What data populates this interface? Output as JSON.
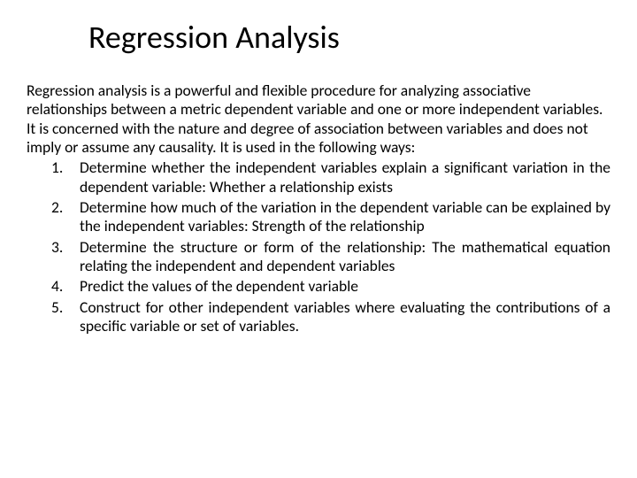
{
  "slide": {
    "title": "Regression Analysis",
    "intro": "Regression analysis is a powerful and flexible procedure for analyzing associative relationships between a metric dependent variable and one or more independent variables. It is concerned with the nature and degree of association between variables and does not imply or assume any causality. It is used in the following ways:",
    "items": [
      "Determine whether the independent variables explain a significant variation in the dependent variable: Whether a relationship exists",
      "Determine how much of the variation in the dependent variable can be explained by the independent variables: Strength of the relationship",
      "Determine the structure or form of the relationship: The mathematical equation relating the independent and dependent variables",
      "Predict the values of the dependent variable",
      "Construct for other independent variables where evaluating the contributions of a specific variable or set of variables."
    ]
  },
  "style": {
    "background_color": "#ffffff",
    "text_color": "#000000",
    "title_fontsize": 36,
    "body_fontsize": 17.5,
    "font_family": "Calibri, Arial, sans-serif",
    "slide_width": 720,
    "slide_height": 540
  }
}
